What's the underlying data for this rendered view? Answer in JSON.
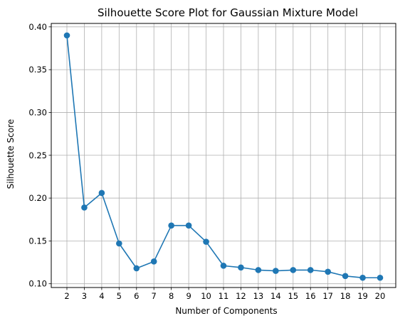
{
  "chart_data": {
    "type": "line",
    "title": "Silhouette Score Plot for Gaussian Mixture Model",
    "xlabel": "Number of Components",
    "ylabel": "Silhouette Score",
    "x": [
      2,
      3,
      4,
      5,
      6,
      7,
      8,
      9,
      10,
      11,
      12,
      13,
      14,
      15,
      16,
      17,
      18,
      19,
      20
    ],
    "x_ticks": [
      "2",
      "3",
      "4",
      "5",
      "6",
      "7",
      "8",
      "9",
      "10",
      "11",
      "12",
      "13",
      "14",
      "15",
      "16",
      "17",
      "18",
      "19",
      "20"
    ],
    "y_ticks": [
      "0.10",
      "0.15",
      "0.20",
      "0.25",
      "0.30",
      "0.35",
      "0.40"
    ],
    "y_tick_values": [
      0.1,
      0.15,
      0.2,
      0.25,
      0.3,
      0.35,
      0.4
    ],
    "series": [
      {
        "values": [
          0.39,
          0.189,
          0.206,
          0.147,
          0.118,
          0.126,
          0.168,
          0.168,
          0.149,
          0.121,
          0.119,
          0.116,
          0.115,
          0.116,
          0.116,
          0.114,
          0.109,
          0.107,
          0.107
        ],
        "color": "#1f77b4",
        "marker": "circle"
      }
    ],
    "xlim": [
      1.1,
      20.9
    ],
    "ylim": [
      0.0956,
      0.404
    ],
    "grid": true,
    "grid_color": "#b0b0b0"
  }
}
